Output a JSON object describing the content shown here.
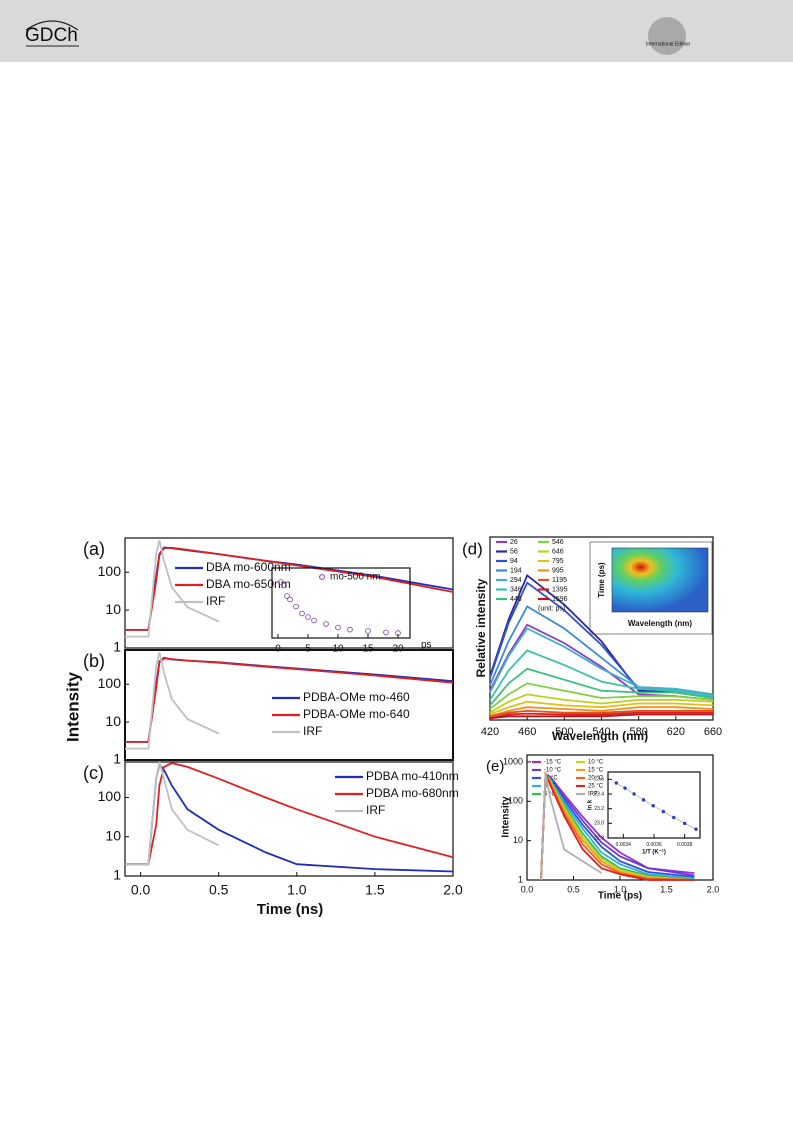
{
  "header": {
    "logo": "GDCh",
    "edition": "International Edition"
  },
  "chart_data": [
    {
      "type": "line",
      "panel_label": "(a)",
      "yscale": "log",
      "x": [
        -0.1,
        0.05,
        0.1,
        0.12,
        0.15,
        0.2,
        0.3,
        0.5,
        0.8,
        1.0,
        1.5,
        2.0
      ],
      "xlim": [
        -0.1,
        2.0
      ],
      "ylim": [
        1,
        800
      ],
      "yticks": [
        1,
        10,
        100
      ],
      "series": [
        {
          "name": "DBA mo-600nm",
          "color": "#1f2fb8",
          "values": [
            3,
            3,
            80,
            300,
            450,
            430,
            380,
            300,
            200,
            160,
            80,
            35
          ]
        },
        {
          "name": "DBA mo-650nm",
          "color": "#e02020",
          "values": [
            3,
            3,
            60,
            280,
            430,
            440,
            390,
            300,
            200,
            150,
            75,
            30
          ]
        },
        {
          "name": "IRF",
          "color": "#c0c0c0",
          "values": [
            2,
            2,
            300,
            700,
            200,
            40,
            12,
            5,
            null,
            null,
            null,
            null
          ]
        }
      ]
    },
    {
      "type": "scatter",
      "x_unit": "ps",
      "x": [
        0.5,
        1,
        1.5,
        2,
        3,
        4,
        5,
        6,
        8,
        10,
        12,
        15,
        18,
        20
      ],
      "xlim": [
        -1,
        22
      ],
      "ylim": [
        0,
        1
      ],
      "xticks": [
        0,
        5,
        10,
        15,
        20
      ],
      "series": [
        {
          "name": "mo-500 nm",
          "color": "#7a3fa0",
          "values": [
            0.8,
            0.75,
            0.6,
            0.55,
            0.45,
            0.35,
            0.3,
            0.25,
            0.2,
            0.15,
            0.12,
            0.1,
            0.08,
            0.07
          ]
        }
      ]
    },
    {
      "type": "line",
      "panel_label": "(b)",
      "yscale": "log",
      "y_label": "Intensity",
      "x": [
        -0.1,
        0.05,
        0.1,
        0.12,
        0.15,
        0.2,
        0.3,
        0.5,
        0.8,
        1.0,
        1.5,
        2.0
      ],
      "xlim": [
        -0.1,
        2.0
      ],
      "ylim": [
        1,
        800
      ],
      "yticks": [
        1,
        10,
        100
      ],
      "series": [
        {
          "name": "PDBA-OMe mo-460",
          "color": "#1f2fb8",
          "values": [
            3,
            3,
            100,
            400,
            500,
            450,
            420,
            380,
            300,
            260,
            180,
            120
          ]
        },
        {
          "name": "PDBA-OMe mo-640",
          "color": "#e02020",
          "values": [
            3,
            3,
            80,
            380,
            480,
            460,
            420,
            370,
            290,
            250,
            170,
            110
          ]
        },
        {
          "name": "IRF",
          "color": "#c0c0c0",
          "values": [
            2,
            2,
            300,
            700,
            200,
            40,
            12,
            5,
            null,
            null,
            null,
            null
          ]
        }
      ]
    },
    {
      "type": "line",
      "panel_label": "(c)",
      "yscale": "log",
      "x_label": "Time (ns)",
      "x": [
        -0.1,
        0.05,
        0.1,
        0.12,
        0.15,
        0.2,
        0.3,
        0.5,
        0.8,
        1.0,
        1.5,
        2.0
      ],
      "xlim": [
        -0.1,
        2.0
      ],
      "ylim": [
        1,
        800
      ],
      "yticks": [
        1,
        10,
        100
      ],
      "xticks": [
        {
          "value": 0,
          "label": "0.0"
        },
        0.5,
        {
          "value": 1,
          "label": "1.0"
        },
        1.5,
        {
          "value": 2,
          "label": "2.0"
        }
      ],
      "series": [
        {
          "name": "PDBA mo-410nm",
          "color": "#1f2fb8",
          "values": [
            2,
            2,
            300,
            700,
            500,
            200,
            50,
            15,
            4,
            2,
            1.5,
            1.3
          ]
        },
        {
          "name": "PDBA mo-680nm",
          "color": "#e02020",
          "values": [
            2,
            2,
            20,
            200,
            600,
            750,
            600,
            300,
            100,
            50,
            10,
            3
          ]
        },
        {
          "name": "IRF",
          "color": "#c0c0c0",
          "values": [
            2,
            2,
            300,
            800,
            300,
            50,
            15,
            6,
            null,
            null,
            null,
            null
          ]
        }
      ]
    },
    {
      "type": "line",
      "panel_label": "(d)",
      "y_label": "Relative intensity",
      "x_label": "Wavelength (nm)",
      "legend_note": "(unit: ps)",
      "x": [
        420,
        440,
        460,
        500,
        540,
        580,
        620,
        660
      ],
      "xlim": [
        420,
        660
      ],
      "ylim": [
        0,
        1
      ],
      "xticks": [
        420,
        460,
        500,
        540,
        580,
        620,
        660
      ],
      "series": [
        {
          "name": "26",
          "color": "#8b3fc6",
          "values": [
            0.16,
            0.36,
            0.52,
            0.42,
            0.29,
            0.14,
            0.13,
            0.11
          ]
        },
        {
          "name": "56",
          "color": "#2a2aa0",
          "values": [
            0.24,
            0.55,
            0.79,
            0.63,
            0.43,
            0.16,
            0.15,
            0.12
          ]
        },
        {
          "name": "94",
          "color": "#3050d0",
          "values": [
            0.23,
            0.53,
            0.75,
            0.6,
            0.41,
            0.17,
            0.16,
            0.13
          ]
        },
        {
          "name": "194",
          "color": "#3a8ad8",
          "values": [
            0.19,
            0.43,
            0.62,
            0.5,
            0.34,
            0.18,
            0.17,
            0.14
          ]
        },
        {
          "name": "294",
          "color": "#40b0d0",
          "values": [
            0.15,
            0.35,
            0.5,
            0.4,
            0.28,
            0.18,
            0.17,
            0.14
          ]
        },
        {
          "name": "346",
          "color": "#40c0b0",
          "values": [
            0.11,
            0.27,
            0.38,
            0.3,
            0.21,
            0.17,
            0.16,
            0.13
          ]
        },
        {
          "name": "446",
          "color": "#40c080",
          "values": [
            0.08,
            0.2,
            0.28,
            0.22,
            0.16,
            0.15,
            0.15,
            0.12
          ]
        },
        {
          "name": "546",
          "color": "#80d040",
          "values": [
            0.06,
            0.14,
            0.2,
            0.16,
            0.12,
            0.13,
            0.13,
            0.11
          ]
        },
        {
          "name": "646",
          "color": "#c0d020",
          "values": [
            0.04,
            0.1,
            0.14,
            0.11,
            0.09,
            0.11,
            0.11,
            0.1
          ]
        },
        {
          "name": "795",
          "color": "#e0c020",
          "values": [
            0.03,
            0.07,
            0.1,
            0.08,
            0.07,
            0.09,
            0.09,
            0.08
          ]
        },
        {
          "name": "995",
          "color": "#f09020",
          "values": [
            0.02,
            0.05,
            0.07,
            0.06,
            0.05,
            0.07,
            0.07,
            0.06
          ]
        },
        {
          "name": "1195",
          "color": "#e05020",
          "values": [
            0.02,
            0.04,
            0.05,
            0.04,
            0.04,
            0.05,
            0.05,
            0.05
          ]
        },
        {
          "name": "1395",
          "color": "#d02020",
          "values": [
            0.01,
            0.03,
            0.035,
            0.03,
            0.03,
            0.04,
            0.04,
            0.04
          ]
        },
        {
          "name": "1596",
          "color": "#c01010",
          "values": [
            0.01,
            0.02,
            0.02,
            0.02,
            0.02,
            0.03,
            0.03,
            0.03
          ]
        }
      ]
    },
    {
      "type": "heatmap",
      "x_label": "Wavelength (nm)",
      "y_label": "Time (ps)"
    },
    {
      "type": "line",
      "panel_label": "(e)",
      "yscale": "log",
      "y_label": "Intensity",
      "x_label": "Time (ps)",
      "x": [
        0.15,
        0.2,
        0.25,
        0.4,
        0.6,
        0.8,
        1.0,
        1.3,
        1.8
      ],
      "xlim": [
        0,
        2
      ],
      "ylim": [
        1,
        1500
      ],
      "yticks": [
        1,
        10,
        100,
        1000
      ],
      "xticks": [
        {
          "value": 0,
          "label": "0.0"
        },
        0.5,
        {
          "value": 1,
          "label": "1.0"
        },
        1.5,
        {
          "value": 2,
          "label": "2.0"
        }
      ],
      "series": [
        {
          "name": "-15 °C",
          "color": "#9b30d0",
          "values": [
            1,
            500,
            420,
            150,
            40,
            12,
            5,
            2,
            1.5
          ]
        },
        {
          "name": "-10 °C",
          "color": "#6a3ad0",
          "values": [
            1,
            500,
            400,
            130,
            32,
            9,
            4,
            2,
            1.3
          ]
        },
        {
          "name": "-5 °C",
          "color": "#3050e0",
          "values": [
            1,
            500,
            380,
            110,
            25,
            7,
            3,
            1.6,
            1.2
          ]
        },
        {
          "name": "0 °C",
          "color": "#30b0e0",
          "values": [
            1,
            500,
            360,
            95,
            20,
            5,
            2.5,
            1.4,
            1.1
          ]
        },
        {
          "name": "5 °C",
          "color": "#30c050",
          "values": [
            1,
            500,
            340,
            80,
            15,
            4,
            2,
            1.3,
            1
          ]
        },
        {
          "name": "10 °C",
          "color": "#c8d020",
          "values": [
            1,
            500,
            320,
            70,
            12,
            3.5,
            1.8,
            1.2,
            1
          ]
        },
        {
          "name": "15 °C",
          "color": "#f0a020",
          "values": [
            1,
            500,
            300,
            60,
            10,
            3,
            1.6,
            1.1,
            1
          ]
        },
        {
          "name": "20 °C",
          "color": "#f06020",
          "values": [
            1,
            500,
            280,
            50,
            8,
            2.5,
            1.5,
            1.1,
            1
          ]
        },
        {
          "name": "25 °C",
          "color": "#e02020",
          "values": [
            1,
            500,
            260,
            42,
            6,
            2,
            1.4,
            1,
            1
          ]
        },
        {
          "name": "IRF",
          "color": "#b0b0b0",
          "values": [
            1,
            500,
            120,
            6,
            3,
            1.5,
            null,
            null,
            null
          ]
        }
      ]
    },
    {
      "type": "scatter",
      "line": true,
      "y_label": "ln k",
      "x_label": "1/T (K⁻¹)",
      "x": [
        0.003354,
        0.003411,
        0.00347,
        0.003532,
        0.003595,
        0.003661,
        0.003729,
        0.0038,
        0.003874
      ],
      "xlim": [
        0.0033,
        0.0039
      ],
      "ylim": [
        22.8,
        23.7
      ],
      "xticks": [
        0.0034,
        0.0036,
        0.0038
      ],
      "yticks": [
        23.6,
        23.4,
        23.2,
        {
          "value": 23,
          "label": "23.0"
        },
        22.8
      ],
      "series": [
        {
          "color": "#2a3fc0",
          "values": [
            23.55,
            23.48,
            23.4,
            23.32,
            23.24,
            23.16,
            23.08,
            23.0,
            22.92
          ]
        }
      ]
    }
  ]
}
